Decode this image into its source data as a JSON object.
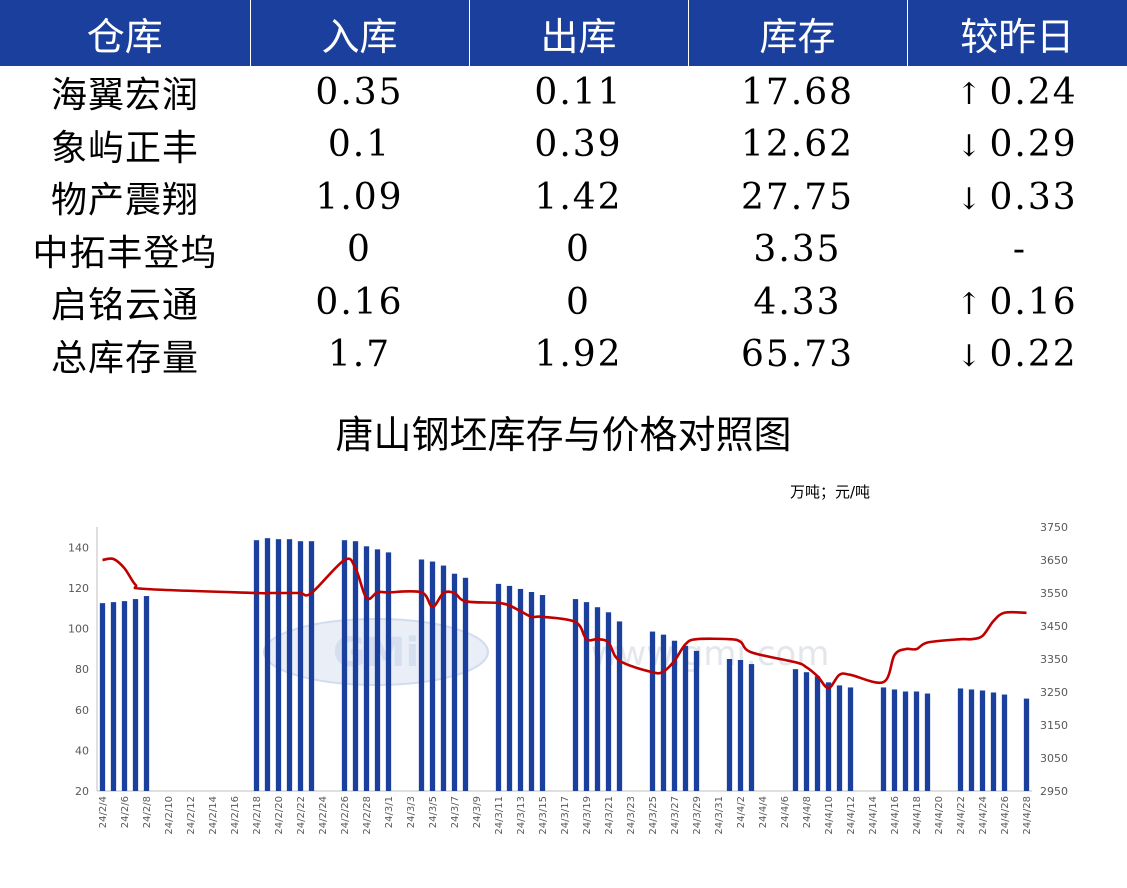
{
  "table": {
    "headers": [
      "仓库",
      "入库",
      "出库",
      "库存",
      "较昨日"
    ],
    "rows": [
      {
        "name": "海翼宏润",
        "in": "0.35",
        "out": "0.11",
        "stock": "17.68",
        "dir": "up",
        "arrow": "↑",
        "change": "0.24"
      },
      {
        "name": "象屿正丰",
        "in": "0.1",
        "out": "0.39",
        "stock": "12.62",
        "dir": "down",
        "arrow": "↓",
        "change": "0.29"
      },
      {
        "name": "物产震翔",
        "in": "1.09",
        "out": "1.42",
        "stock": "27.75",
        "dir": "down",
        "arrow": "↓",
        "change": "0.33"
      },
      {
        "name": "中拓丰登坞",
        "in": "0",
        "out": "0",
        "stock": "3.35",
        "dir": "flat",
        "arrow": "",
        "change": "-"
      },
      {
        "name": "启铭云通",
        "in": "0.16",
        "out": "0",
        "stock": "4.33",
        "dir": "up",
        "arrow": "↑",
        "change": "0.16"
      },
      {
        "name": "总库存量",
        "in": "1.7",
        "out": "1.92",
        "stock": "65.73",
        "dir": "down",
        "arrow": "↓",
        "change": "0.22"
      }
    ]
  },
  "chart_title": "唐山钢坯库存与价格对照图",
  "unit_label": "万吨；元/吨",
  "watermark": {
    "logo": "GMi",
    "url": "www.gmi.com"
  },
  "colors": {
    "header_bg": "#1a3f9c",
    "bar": "#1a3f9c",
    "line": "#c00000",
    "up": "#e41a1c",
    "down": "#1a9a38"
  },
  "chart_data": {
    "type": "bar",
    "x_tick_labels": [
      "24/2/4",
      "24/2/6",
      "24/2/8",
      "24/2/10",
      "24/2/12",
      "24/2/14",
      "24/2/16",
      "24/2/18",
      "24/2/20",
      "24/2/22",
      "24/2/24",
      "24/2/26",
      "24/2/28",
      "24/3/1",
      "24/3/3",
      "24/3/5",
      "24/3/7",
      "24/3/9",
      "24/3/11",
      "24/3/13",
      "24/3/15",
      "24/3/17",
      "24/3/19",
      "24/3/21",
      "24/3/23",
      "24/3/25",
      "24/3/27",
      "24/3/29",
      "24/3/31",
      "24/4/2",
      "24/4/4",
      "24/4/6",
      "24/4/8",
      "24/4/10",
      "24/4/12",
      "24/4/14",
      "24/4/16",
      "24/4/18",
      "24/4/20",
      "24/4/22",
      "24/4/24",
      "24/4/26",
      "24/4/28"
    ],
    "left_axis": {
      "min": 20,
      "max": 150,
      "ticks": [
        20,
        40,
        60,
        80,
        100,
        120,
        140
      ]
    },
    "right_axis": {
      "min": 2950,
      "max": 3750,
      "ticks": [
        2950,
        3050,
        3150,
        3250,
        3350,
        3450,
        3550,
        3650,
        3750
      ]
    },
    "bars": [
      {
        "date": "24/2/4",
        "value": 112.5
      },
      {
        "date": "24/2/5",
        "value": 113.0
      },
      {
        "date": "24/2/6",
        "value": 113.5
      },
      {
        "date": "24/2/7",
        "value": 114.5
      },
      {
        "date": "24/2/8",
        "value": 116.0
      },
      {
        "date": "24/2/18",
        "value": 143.5
      },
      {
        "date": "24/2/19",
        "value": 144.5
      },
      {
        "date": "24/2/20",
        "value": 144.0
      },
      {
        "date": "24/2/21",
        "value": 144.0
      },
      {
        "date": "24/2/22",
        "value": 143.0
      },
      {
        "date": "24/2/23",
        "value": 143.0
      },
      {
        "date": "24/2/26",
        "value": 143.5
      },
      {
        "date": "24/2/27",
        "value": 143.0
      },
      {
        "date": "24/2/28",
        "value": 140.5
      },
      {
        "date": "24/2/29",
        "value": 139.0
      },
      {
        "date": "24/3/1",
        "value": 137.5
      },
      {
        "date": "24/3/4",
        "value": 134.0
      },
      {
        "date": "24/3/5",
        "value": 133.0
      },
      {
        "date": "24/3/6",
        "value": 131.0
      },
      {
        "date": "24/3/7",
        "value": 127.0
      },
      {
        "date": "24/3/8",
        "value": 125.0
      },
      {
        "date": "24/3/11",
        "value": 122.0
      },
      {
        "date": "24/3/12",
        "value": 121.0
      },
      {
        "date": "24/3/13",
        "value": 119.5
      },
      {
        "date": "24/3/14",
        "value": 118.0
      },
      {
        "date": "24/3/15",
        "value": 116.5
      },
      {
        "date": "24/3/18",
        "value": 114.5
      },
      {
        "date": "24/3/19",
        "value": 113.0
      },
      {
        "date": "24/3/20",
        "value": 110.5
      },
      {
        "date": "24/3/21",
        "value": 108.0
      },
      {
        "date": "24/3/22",
        "value": 103.5
      },
      {
        "date": "24/3/25",
        "value": 98.5
      },
      {
        "date": "24/3/26",
        "value": 97.0
      },
      {
        "date": "24/3/27",
        "value": 94.0
      },
      {
        "date": "24/3/28",
        "value": 91.5
      },
      {
        "date": "24/3/29",
        "value": 89.0
      },
      {
        "date": "24/4/1",
        "value": 85.0
      },
      {
        "date": "24/4/2",
        "value": 84.5
      },
      {
        "date": "24/4/3",
        "value": 82.5
      },
      {
        "date": "24/4/7",
        "value": 80.0
      },
      {
        "date": "24/4/8",
        "value": 78.5
      },
      {
        "date": "24/4/9",
        "value": 76.5
      },
      {
        "date": "24/4/10",
        "value": 73.5
      },
      {
        "date": "24/4/11",
        "value": 72.0
      },
      {
        "date": "24/4/12",
        "value": 71.0
      },
      {
        "date": "24/4/15",
        "value": 71.0
      },
      {
        "date": "24/4/16",
        "value": 70.0
      },
      {
        "date": "24/4/17",
        "value": 69.0
      },
      {
        "date": "24/4/18",
        "value": 69.0
      },
      {
        "date": "24/4/19",
        "value": 68.0
      },
      {
        "date": "24/4/22",
        "value": 70.5
      },
      {
        "date": "24/4/23",
        "value": 70.0
      },
      {
        "date": "24/4/24",
        "value": 69.5
      },
      {
        "date": "24/4/25",
        "value": 68.5
      },
      {
        "date": "24/4/26",
        "value": 67.5
      },
      {
        "date": "24/4/28",
        "value": 65.5
      }
    ],
    "line": [
      {
        "date": "24/2/4",
        "value": 3650
      },
      {
        "date": "24/2/5",
        "value": 3653
      },
      {
        "date": "24/2/6",
        "value": 3625
      },
      {
        "date": "24/2/7",
        "value": 3575
      },
      {
        "date": "24/2/8",
        "value": 3562
      },
      {
        "date": "24/2/18",
        "value": 3550
      },
      {
        "date": "24/2/19",
        "value": 3550
      },
      {
        "date": "24/2/20",
        "value": 3550
      },
      {
        "date": "24/2/21",
        "value": 3550
      },
      {
        "date": "24/2/22",
        "value": 3550
      },
      {
        "date": "24/2/23",
        "value": 3550
      },
      {
        "date": "24/2/26",
        "value": 3650
      },
      {
        "date": "24/2/27",
        "value": 3625
      },
      {
        "date": "24/2/28",
        "value": 3535
      },
      {
        "date": "24/2/29",
        "value": 3552
      },
      {
        "date": "24/3/1",
        "value": 3552
      },
      {
        "date": "24/3/4",
        "value": 3552
      },
      {
        "date": "24/3/5",
        "value": 3508
      },
      {
        "date": "24/3/6",
        "value": 3550
      },
      {
        "date": "24/3/7",
        "value": 3550
      },
      {
        "date": "24/3/8",
        "value": 3525
      },
      {
        "date": "24/3/11",
        "value": 3520
      },
      {
        "date": "24/3/12",
        "value": 3512
      },
      {
        "date": "24/3/13",
        "value": 3495
      },
      {
        "date": "24/3/14",
        "value": 3478
      },
      {
        "date": "24/3/15",
        "value": 3478
      },
      {
        "date": "24/3/18",
        "value": 3462
      },
      {
        "date": "24/3/19",
        "value": 3410
      },
      {
        "date": "24/3/20",
        "value": 3410
      },
      {
        "date": "24/3/21",
        "value": 3400
      },
      {
        "date": "24/3/22",
        "value": 3345
      },
      {
        "date": "24/3/25",
        "value": 3310
      },
      {
        "date": "24/3/26",
        "value": 3312
      },
      {
        "date": "24/3/27",
        "value": 3345
      },
      {
        "date": "24/3/28",
        "value": 3395
      },
      {
        "date": "24/3/29",
        "value": 3410
      },
      {
        "date": "24/4/1",
        "value": 3410
      },
      {
        "date": "24/4/2",
        "value": 3402
      },
      {
        "date": "24/4/3",
        "value": 3370
      },
      {
        "date": "24/4/7",
        "value": 3340
      },
      {
        "date": "24/4/8",
        "value": 3325
      },
      {
        "date": "24/4/9",
        "value": 3298
      },
      {
        "date": "24/4/10",
        "value": 3262
      },
      {
        "date": "24/4/11",
        "value": 3302
      },
      {
        "date": "24/4/12",
        "value": 3302
      },
      {
        "date": "24/4/15",
        "value": 3280
      },
      {
        "date": "24/4/16",
        "value": 3362
      },
      {
        "date": "24/4/17",
        "value": 3380
      },
      {
        "date": "24/4/18",
        "value": 3380
      },
      {
        "date": "24/4/19",
        "value": 3400
      },
      {
        "date": "24/4/22",
        "value": 3410
      },
      {
        "date": "24/4/23",
        "value": 3410
      },
      {
        "date": "24/4/24",
        "value": 3420
      },
      {
        "date": "24/4/25",
        "value": 3465
      },
      {
        "date": "24/4/26",
        "value": 3490
      },
      {
        "date": "24/4/28",
        "value": 3490
      }
    ]
  }
}
